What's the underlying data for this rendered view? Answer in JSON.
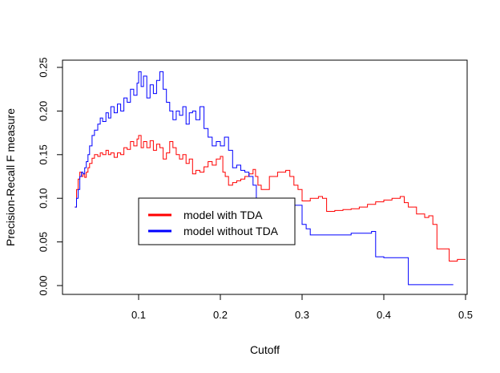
{
  "chart_data": {
    "type": "line",
    "title": "",
    "xlabel": "Cutoff",
    "ylabel": "Precision-Recall F measure",
    "xlim": [
      0.0,
      0.5
    ],
    "ylim": [
      0.0,
      0.25
    ],
    "xticks": [
      0.1,
      0.2,
      0.3,
      0.4,
      0.5
    ],
    "xtick_labels": [
      "0.1",
      "0.2",
      "0.3",
      "0.4",
      "0.5"
    ],
    "yticks": [
      0.0,
      0.05,
      0.1,
      0.15,
      0.2,
      0.25
    ],
    "ytick_labels": [
      "0.00",
      "0.05",
      "0.10",
      "0.15",
      "0.20",
      "0.25"
    ],
    "grid": false,
    "legend_position": "center",
    "series": [
      {
        "name": "model with TDA",
        "color": "#ff0000",
        "line_style": "step",
        "x": [
          0.022,
          0.024,
          0.026,
          0.028,
          0.03,
          0.032,
          0.034,
          0.036,
          0.038,
          0.04,
          0.043,
          0.046,
          0.05,
          0.053,
          0.056,
          0.06,
          0.063,
          0.066,
          0.07,
          0.074,
          0.078,
          0.082,
          0.086,
          0.09,
          0.094,
          0.098,
          0.1,
          0.103,
          0.106,
          0.11,
          0.114,
          0.118,
          0.122,
          0.126,
          0.13,
          0.134,
          0.138,
          0.142,
          0.146,
          0.15,
          0.154,
          0.158,
          0.162,
          0.166,
          0.17,
          0.175,
          0.18,
          0.185,
          0.19,
          0.195,
          0.2,
          0.203,
          0.206,
          0.21,
          0.215,
          0.22,
          0.225,
          0.23,
          0.235,
          0.24,
          0.243,
          0.246,
          0.25,
          0.26,
          0.27,
          0.28,
          0.285,
          0.29,
          0.295,
          0.3,
          0.31,
          0.32,
          0.325,
          0.33,
          0.34,
          0.35,
          0.36,
          0.37,
          0.38,
          0.39,
          0.4,
          0.41,
          0.42,
          0.425,
          0.43,
          0.44,
          0.45,
          0.455,
          0.46,
          0.465,
          0.48,
          0.49,
          0.5
        ],
        "y": [
          0.09,
          0.11,
          0.122,
          0.13,
          0.125,
          0.128,
          0.124,
          0.13,
          0.135,
          0.14,
          0.146,
          0.15,
          0.148,
          0.152,
          0.15,
          0.155,
          0.15,
          0.152,
          0.147,
          0.152,
          0.15,
          0.158,
          0.156,
          0.165,
          0.16,
          0.168,
          0.172,
          0.158,
          0.165,
          0.158,
          0.166,
          0.155,
          0.162,
          0.158,
          0.145,
          0.152,
          0.165,
          0.158,
          0.15,
          0.145,
          0.15,
          0.14,
          0.145,
          0.128,
          0.132,
          0.13,
          0.136,
          0.142,
          0.138,
          0.145,
          0.148,
          0.13,
          0.125,
          0.115,
          0.118,
          0.12,
          0.122,
          0.125,
          0.128,
          0.133,
          0.125,
          0.115,
          0.11,
          0.125,
          0.13,
          0.132,
          0.125,
          0.115,
          0.11,
          0.097,
          0.1,
          0.102,
          0.1,
          0.085,
          0.086,
          0.087,
          0.088,
          0.09,
          0.093,
          0.096,
          0.098,
          0.1,
          0.102,
          0.095,
          0.09,
          0.082,
          0.078,
          0.08,
          0.07,
          0.042,
          0.028,
          0.03,
          0.03
        ]
      },
      {
        "name": "model without TDA",
        "color": "#0000ff",
        "line_style": "step",
        "x": [
          0.022,
          0.024,
          0.026,
          0.028,
          0.03,
          0.032,
          0.034,
          0.036,
          0.038,
          0.04,
          0.043,
          0.046,
          0.05,
          0.053,
          0.056,
          0.06,
          0.063,
          0.066,
          0.07,
          0.074,
          0.078,
          0.082,
          0.086,
          0.09,
          0.094,
          0.098,
          0.1,
          0.103,
          0.106,
          0.11,
          0.114,
          0.118,
          0.122,
          0.126,
          0.13,
          0.134,
          0.138,
          0.142,
          0.146,
          0.15,
          0.154,
          0.158,
          0.162,
          0.166,
          0.17,
          0.175,
          0.18,
          0.185,
          0.19,
          0.195,
          0.2,
          0.205,
          0.21,
          0.215,
          0.22,
          0.225,
          0.23,
          0.235,
          0.24,
          0.244,
          0.248,
          0.252,
          0.26,
          0.27,
          0.28,
          0.29,
          0.3,
          0.305,
          0.31,
          0.32,
          0.33,
          0.34,
          0.35,
          0.36,
          0.37,
          0.38,
          0.385,
          0.39,
          0.4,
          0.41,
          0.42,
          0.425,
          0.43,
          0.44,
          0.45,
          0.46,
          0.47,
          0.48,
          0.485
        ],
        "y": [
          0.09,
          0.1,
          0.11,
          0.125,
          0.13,
          0.128,
          0.135,
          0.142,
          0.15,
          0.16,
          0.172,
          0.178,
          0.185,
          0.192,
          0.188,
          0.198,
          0.192,
          0.205,
          0.198,
          0.208,
          0.2,
          0.215,
          0.21,
          0.225,
          0.218,
          0.232,
          0.245,
          0.228,
          0.24,
          0.215,
          0.23,
          0.22,
          0.235,
          0.245,
          0.225,
          0.21,
          0.2,
          0.19,
          0.2,
          0.195,
          0.205,
          0.185,
          0.198,
          0.2,
          0.19,
          0.205,
          0.18,
          0.17,
          0.16,
          0.165,
          0.16,
          0.17,
          0.155,
          0.135,
          0.138,
          0.132,
          0.13,
          0.125,
          0.115,
          0.1,
          0.09,
          0.085,
          0.085,
          0.088,
          0.09,
          0.092,
          0.07,
          0.065,
          0.058,
          0.058,
          0.058,
          0.058,
          0.058,
          0.06,
          0.06,
          0.06,
          0.062,
          0.033,
          0.032,
          0.032,
          0.032,
          0.032,
          0.001,
          0.001,
          0.001,
          0.001,
          0.001,
          0.001,
          0.001
        ]
      }
    ]
  }
}
